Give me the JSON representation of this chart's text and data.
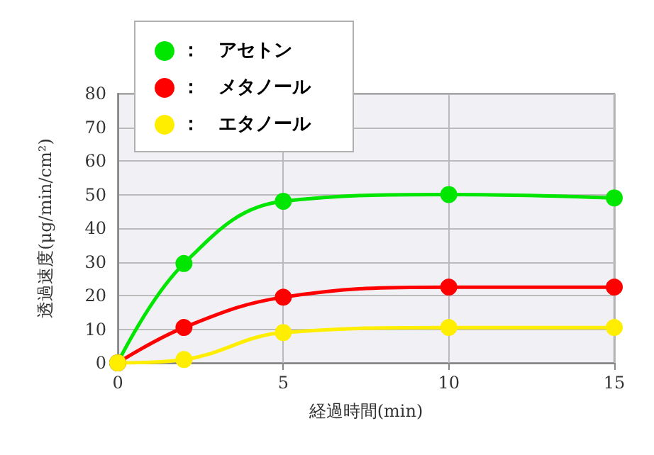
{
  "chart_data": {
    "type": "line",
    "xlabel": "経過時間(min)",
    "ylabel": "透過速度(μg/min/cm²)",
    "x": [
      0,
      2,
      5,
      10,
      15
    ],
    "series": [
      {
        "name": "：　アセトン",
        "color": "#00e600",
        "values": [
          0,
          29.5,
          48,
          50,
          49
        ]
      },
      {
        "name": "：　メタノール",
        "color": "#ff0000",
        "values": [
          0,
          10.5,
          19.5,
          22.5,
          22.5
        ]
      },
      {
        "name": "：　エタノール",
        "color": "#ffee00",
        "values": [
          0,
          1,
          9,
          10.5,
          10.5
        ]
      }
    ],
    "xlim": [
      0,
      15
    ],
    "xticks": [
      0,
      5,
      10,
      15
    ],
    "ylim": [
      0,
      80
    ],
    "yticks": [
      0,
      10,
      20,
      30,
      40,
      50,
      60,
      70,
      80
    ],
    "grid": true,
    "legend": "top left",
    "marker": "circle",
    "line_style": "solid"
  }
}
